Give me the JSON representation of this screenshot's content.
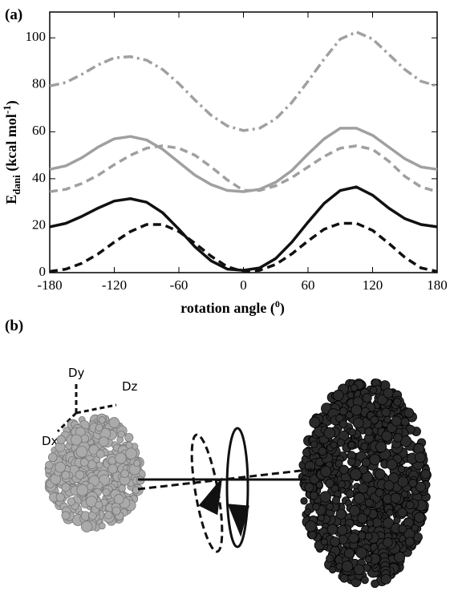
{
  "chart_data": {
    "type": "line",
    "panel_label": "(a)",
    "xlabel": {
      "text": "rotation angle (",
      "sup": "0",
      "close": ")"
    },
    "ylabel": {
      "text": "E",
      "sub": "dani",
      "unit": " (kcal mol",
      "sup": "-1",
      "close": ")"
    },
    "x": [
      -180,
      -165,
      -150,
      -135,
      -120,
      -105,
      -90,
      -75,
      -60,
      -45,
      -30,
      -15,
      0,
      15,
      30,
      45,
      60,
      75,
      90,
      105,
      120,
      135,
      150,
      165,
      180
    ],
    "series": [
      {
        "color": "#a0a0a0",
        "style": "dashdot",
        "values": [
          79.5,
          81,
          84.5,
          88.5,
          91.5,
          92,
          90.5,
          86.5,
          80.5,
          73.5,
          67,
          62.5,
          60.5,
          61.5,
          65.5,
          72.5,
          81.5,
          91,
          99.5,
          102.5,
          99.5,
          93,
          86.5,
          81.5,
          79.5
        ]
      },
      {
        "color": "#a0a0a0",
        "style": "solid",
        "values": [
          44,
          45.5,
          49,
          53.5,
          57,
          58,
          56.5,
          52.5,
          47,
          41.5,
          37.5,
          35,
          34.5,
          35.5,
          38.5,
          43.5,
          50.5,
          57,
          61.5,
          61.5,
          58.5,
          53.5,
          48.5,
          45,
          44
        ]
      },
      {
        "color": "#a0a0a0",
        "style": "dashed",
        "values": [
          34.5,
          35.5,
          38,
          41.5,
          46,
          50,
          53,
          54,
          53,
          50,
          45,
          39.5,
          35,
          35,
          37,
          40.5,
          45,
          49.5,
          53,
          54,
          52.5,
          47.5,
          41,
          36.5,
          34.5
        ]
      },
      {
        "color": "#111111",
        "style": "solid",
        "values": [
          19.5,
          21,
          24,
          27.5,
          30.5,
          31.5,
          30,
          25.5,
          18.5,
          11,
          5,
          1.5,
          1,
          2,
          6,
          13,
          21.5,
          29.5,
          35,
          36.5,
          33,
          27.5,
          23,
          20.5,
          19.5
        ]
      },
      {
        "color": "#111111",
        "style": "dashed",
        "values": [
          0.5,
          1.5,
          4,
          8,
          13,
          17.5,
          20.5,
          20.5,
          17.5,
          12.5,
          7,
          2.5,
          0.5,
          1,
          3.5,
          8,
          13.5,
          18.5,
          21,
          21,
          18,
          12.5,
          6.5,
          2,
          0.5
        ]
      }
    ],
    "xlim": [
      -180,
      180
    ],
    "xticks": [
      -180,
      -120,
      -60,
      0,
      60,
      120,
      180
    ],
    "ylim": [
      0,
      111
    ],
    "yticks": [
      0,
      20,
      40,
      60,
      80,
      100
    ]
  },
  "panel_b": {
    "label": "(b)",
    "axes": [
      "Dy",
      "Dz",
      "Dx"
    ]
  }
}
